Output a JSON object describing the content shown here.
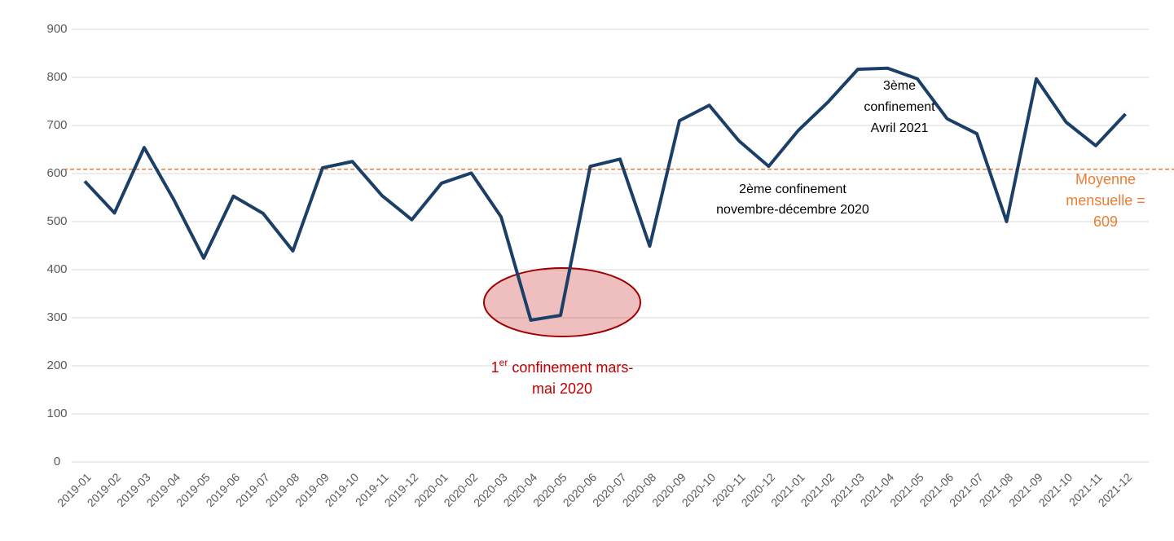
{
  "chart_data": {
    "type": "line",
    "categories": [
      "2019-01",
      "2019-02",
      "2019-03",
      "2019-04",
      "2019-05",
      "2019-06",
      "2019-07",
      "2019-08",
      "2019-09",
      "2019-10",
      "2019-11",
      "2019-12",
      "2020-01",
      "2020-02",
      "2020-03",
      "2020-04",
      "2020-05",
      "2020-06",
      "2020-07",
      "2020-08",
      "2020-09",
      "2020-10",
      "2020-11",
      "2020-12",
      "2021-01",
      "2021-02",
      "2021-03",
      "2021-04",
      "2021-05",
      "2021-06",
      "2021-07",
      "2021-08",
      "2021-09",
      "2021-10",
      "2021-11",
      "2021-12"
    ],
    "values": [
      584,
      518,
      654,
      545,
      424,
      553,
      517,
      439,
      612,
      625,
      554,
      504,
      580,
      601,
      510,
      295,
      305,
      615,
      630,
      449,
      710,
      742,
      668,
      615,
      690,
      749,
      817,
      819,
      797,
      714,
      683,
      500,
      797,
      707,
      658,
      724
    ],
    "color": "#1b3f66",
    "ylim": [
      0,
      900
    ],
    "yticks": [
      0,
      100,
      200,
      300,
      400,
      500,
      600,
      700,
      800,
      900
    ],
    "grid": true,
    "mean": {
      "value": 609,
      "color": "#ed7d31",
      "label_lines": [
        "Moyenne",
        "mensuelle ="
      ]
    },
    "annotations": {
      "first": {
        "base": "1",
        "sup": "er",
        "rest": " confinement mars-",
        "line2": "mai 2020",
        "color": "#c00000"
      },
      "second": [
        "2ème confinement",
        "novembre-décembre 2020"
      ],
      "third": [
        "3ème",
        "confinement",
        "Avril 2021"
      ]
    }
  }
}
